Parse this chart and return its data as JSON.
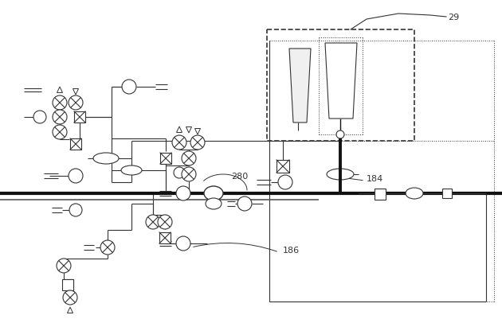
{
  "bg_color": "#ffffff",
  "lc": "#333333",
  "fig_width": 6.3,
  "fig_height": 4.02,
  "dpi": 100
}
